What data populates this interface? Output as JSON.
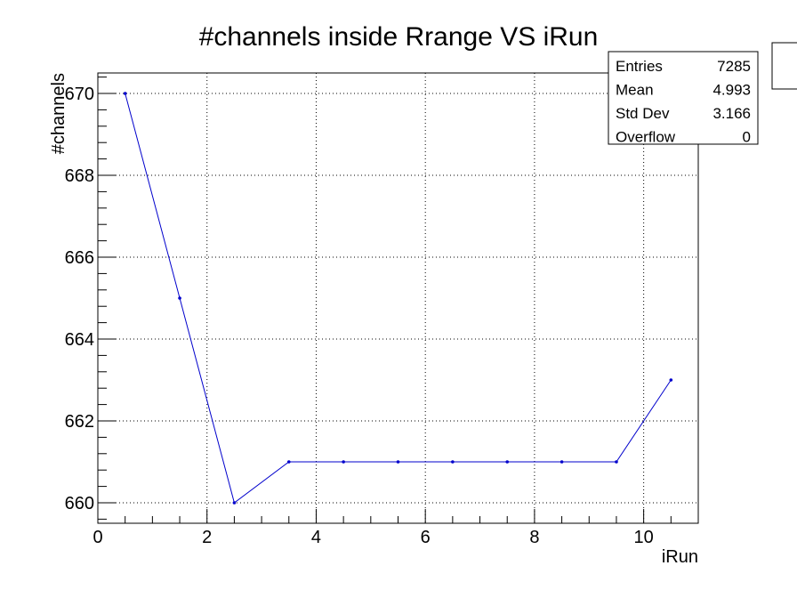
{
  "chart_data": {
    "type": "line",
    "title": "#channels inside Rrange VS iRun",
    "xlabel": "iRun",
    "ylabel": "#channels",
    "xlim": [
      0,
      11
    ],
    "ylim": [
      659.5,
      670.5
    ],
    "x_ticks": [
      "0",
      "2",
      "4",
      "6",
      "8",
      "10"
    ],
    "y_ticks": [
      "660",
      "662",
      "664",
      "666",
      "668",
      "670"
    ],
    "grid": true,
    "series": [
      {
        "x": [
          0.5,
          1.5,
          2.5,
          3.5,
          4.5,
          5.5,
          6.5,
          7.5,
          8.5,
          9.5,
          10.5
        ],
        "y": [
          670,
          665,
          660,
          661,
          661,
          661,
          661,
          661,
          661,
          661,
          663
        ],
        "color": "#0000cc"
      }
    ],
    "stats_box": {
      "rows": [
        {
          "label": "Entries",
          "value": "7285"
        },
        {
          "label": "Mean",
          "value": "4.993"
        },
        {
          "label": "Std Dev",
          "value": "3.166"
        },
        {
          "label": "Overflow",
          "value": "0"
        }
      ]
    }
  }
}
